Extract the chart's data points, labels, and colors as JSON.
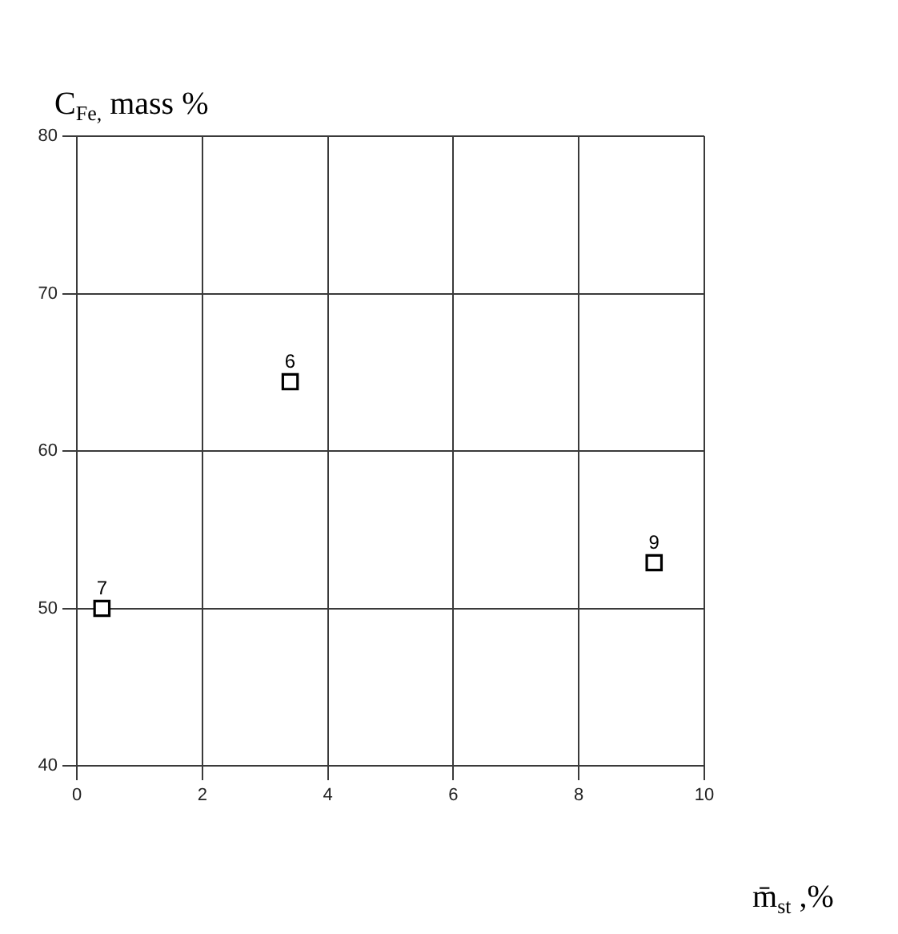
{
  "chart_data": {
    "type": "scatter",
    "xlabel": "m̄$_{st}$ ,%",
    "ylabel": "C$_{Fe,}$ mass %",
    "x": [
      0.4,
      3.4,
      9.2
    ],
    "series": [
      {
        "color": "#000000",
        "values": [
          50,
          64.4,
          52.9
        ]
      }
    ],
    "xlim": [
      0,
      10
    ],
    "xticks": [
      0,
      2,
      4,
      6,
      8,
      10
    ],
    "ylim": [
      40,
      80
    ],
    "yticks": [
      40,
      50,
      60,
      70,
      80
    ],
    "grid": true,
    "legend": false,
    "marker": "square",
    "annotations": [
      {
        "text": "7",
        "x": 0.4,
        "y": 50
      },
      {
        "text": "6",
        "x": 3.4,
        "y": 64.4
      },
      {
        "text": "9",
        "x": 9.2,
        "y": 52.9
      }
    ]
  }
}
